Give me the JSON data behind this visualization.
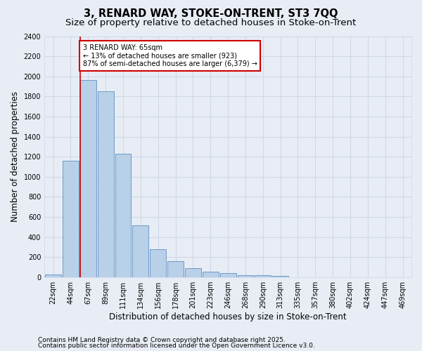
{
  "title1": "3, RENARD WAY, STOKE-ON-TRENT, ST3 7QQ",
  "title2": "Size of property relative to detached houses in Stoke-on-Trent",
  "xlabel": "Distribution of detached houses by size in Stoke-on-Trent",
  "ylabel": "Number of detached properties",
  "categories": [
    "22sqm",
    "44sqm",
    "67sqm",
    "89sqm",
    "111sqm",
    "134sqm",
    "156sqm",
    "178sqm",
    "201sqm",
    "223sqm",
    "246sqm",
    "268sqm",
    "290sqm",
    "313sqm",
    "335sqm",
    "357sqm",
    "380sqm",
    "402sqm",
    "424sqm",
    "447sqm",
    "469sqm"
  ],
  "values": [
    28,
    1160,
    1960,
    1850,
    1230,
    515,
    275,
    158,
    92,
    52,
    42,
    22,
    18,
    14,
    0,
    0,
    0,
    0,
    0,
    0,
    0
  ],
  "bar_color": "#b8d0e8",
  "bar_edge_color": "#6090c0",
  "property_line_index": 2,
  "annotation_line1": "3 RENARD WAY: 65sqm",
  "annotation_line2": "← 13% of detached houses are smaller (923)",
  "annotation_line3": "87% of semi-detached houses are larger (6,379) →",
  "annotation_box_color": "#ffffff",
  "annotation_box_edge_color": "#cc0000",
  "vline_color": "#cc0000",
  "footer1": "Contains HM Land Registry data © Crown copyright and database right 2025.",
  "footer2": "Contains public sector information licensed under the Open Government Licence v3.0.",
  "ylim": [
    0,
    2400
  ],
  "yticks": [
    0,
    200,
    400,
    600,
    800,
    1000,
    1200,
    1400,
    1600,
    1800,
    2000,
    2200,
    2400
  ],
  "background_color": "#e8edf5",
  "plot_background_color": "#e8edf5",
  "grid_color": "#d0d8e8",
  "title_fontsize": 10.5,
  "subtitle_fontsize": 9.5,
  "axis_label_fontsize": 8.5,
  "tick_fontsize": 7,
  "footer_fontsize": 6.5
}
